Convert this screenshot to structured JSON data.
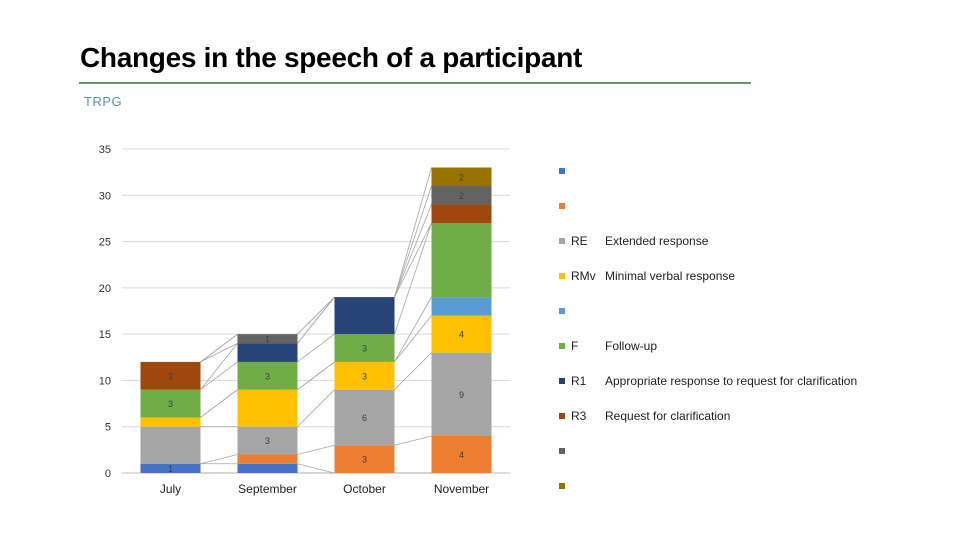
{
  "slide": {
    "title": "Changes in the speech of a participant",
    "subtitle": "TRPG"
  },
  "chart_data": {
    "type": "bar",
    "stacked": true,
    "categories": [
      "July",
      "September",
      "October",
      "November"
    ],
    "ylim": [
      0,
      35
    ],
    "yticks": [
      0,
      5,
      10,
      15,
      20,
      25,
      30,
      35
    ],
    "grid": true,
    "legend_position": "right",
    "series": [
      {
        "name": "",
        "description": "",
        "color": "#4472c4",
        "values": [
          1,
          1,
          0,
          0
        ],
        "labels": [
          "1",
          "",
          "",
          ""
        ]
      },
      {
        "name": "",
        "description": "",
        "color": "#ed7d31",
        "values": [
          0,
          1,
          3,
          4
        ],
        "labels": [
          "",
          "",
          "3",
          "4"
        ]
      },
      {
        "name": "RE",
        "description": "Extended response",
        "color": "#a5a5a5",
        "values": [
          4,
          3,
          6,
          9
        ],
        "labels": [
          "",
          "3",
          "6",
          "9"
        ]
      },
      {
        "name": "RMv",
        "description": "Minimal verbal response",
        "color": "#ffc000",
        "values": [
          1,
          4,
          3,
          4
        ],
        "labels": [
          "",
          "",
          "3",
          "4"
        ]
      },
      {
        "name": "",
        "description": "",
        "color": "#5b9bd5",
        "values": [
          0,
          0,
          0,
          2
        ],
        "labels": [
          "",
          "",
          "",
          ""
        ]
      },
      {
        "name": "F",
        "description": "Follow-up",
        "color": "#70ad47",
        "values": [
          3,
          3,
          3,
          8
        ],
        "labels": [
          "3",
          "3",
          "3",
          ""
        ]
      },
      {
        "name": "R1",
        "description": "Appropriate response to request for clarification",
        "color": "#264478",
        "values": [
          0,
          2,
          4,
          0
        ],
        "labels": [
          "",
          "",
          "",
          ""
        ]
      },
      {
        "name": "R3",
        "description": "Request for clarification",
        "color": "#9e480e",
        "values": [
          3,
          0,
          0,
          2
        ],
        "labels": [
          "3",
          "",
          "",
          ""
        ]
      },
      {
        "name": "",
        "description": "",
        "color": "#636363",
        "values": [
          0,
          1,
          0,
          2
        ],
        "labels": [
          "",
          "1",
          "",
          "2"
        ]
      },
      {
        "name": "",
        "description": "",
        "color": "#997300",
        "values": [
          0,
          0,
          0,
          2
        ],
        "labels": [
          "",
          "",
          "",
          "2"
        ]
      }
    ]
  }
}
